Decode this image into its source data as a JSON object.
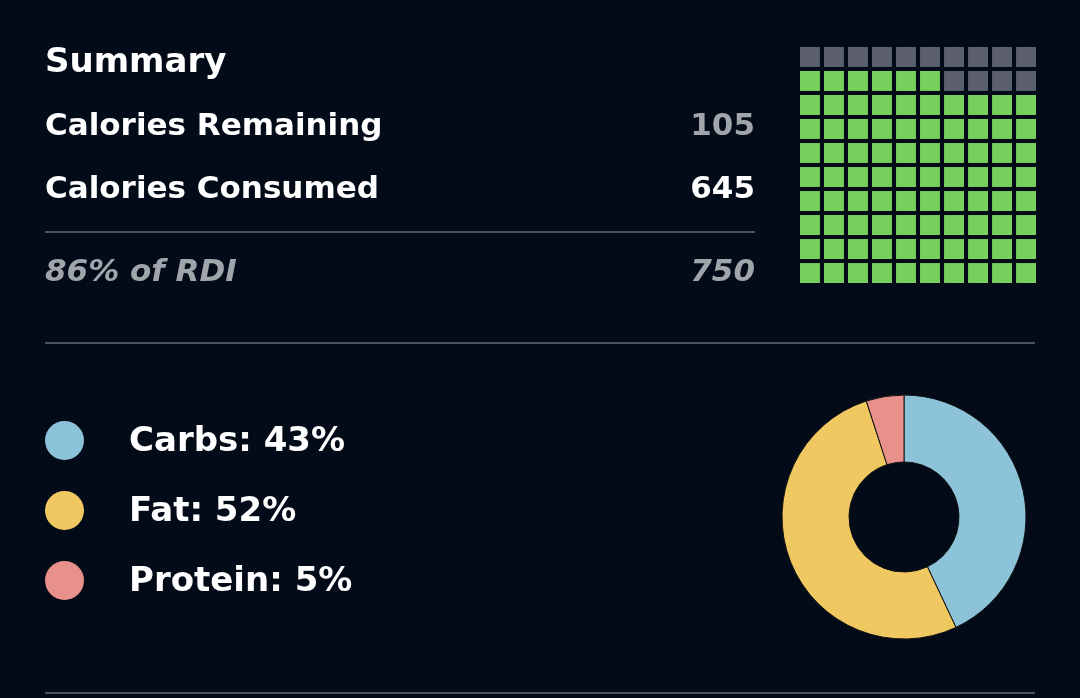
{
  "chart_data": [
    {
      "type": "other",
      "title": "Summary",
      "annotations": [
        "Calories Remaining",
        "105",
        "Calories Consumed",
        "645",
        "86% of RDI",
        "750"
      ]
    },
    {
      "type": "donut",
      "categories": [
        "Carbs: 43%",
        "Fat: 52%",
        "Protein: 5%"
      ],
      "values": [
        43,
        52,
        5
      ],
      "colors": [
        "#8cc3d9",
        "#f0c862",
        "#e8908a"
      ],
      "legend": "left"
    }
  ]
}
